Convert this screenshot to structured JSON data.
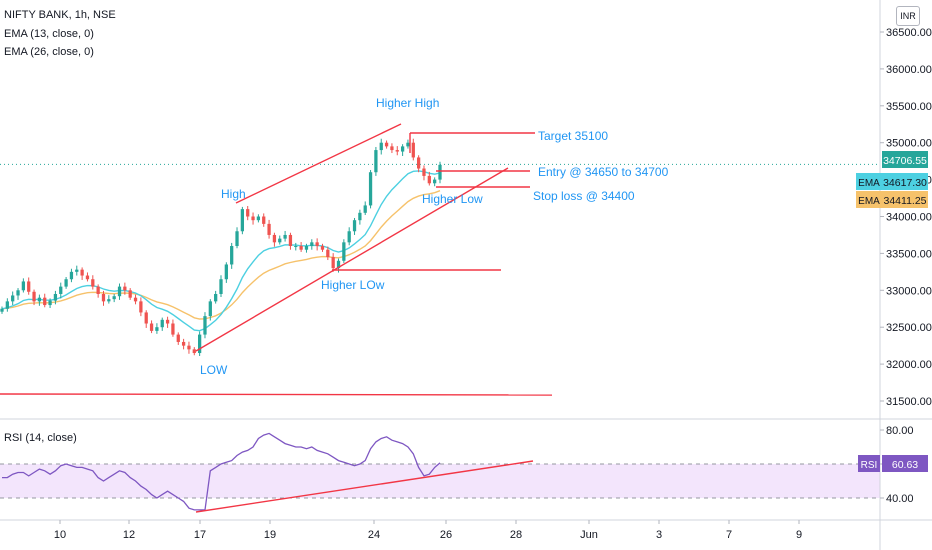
{
  "legend": {
    "symbol": "NIFTY BANK, 1h, NSE",
    "ema1": "EMA (13, close, 0)",
    "ema2": "EMA (26, close, 0)"
  },
  "rsi_legend": "RSI (14, close)",
  "currency": "INR",
  "colors": {
    "up": "#26a69a",
    "down": "#ef5350",
    "ema_fast": "#4dd0e1",
    "ema_slow": "#f6c26b",
    "rsi_line": "#7e57c2",
    "drawing": "#f23645",
    "annotation": "#2196f3",
    "rsi_band": "#f3e5fc"
  },
  "chart_data": [
    {
      "type": "candlestick",
      "title": "NIFTY BANK, 1h, NSE",
      "ylim": [
        31300,
        36800
      ],
      "y_ticks": [
        "36500.00",
        "36000.00",
        "35500.00",
        "35000.00",
        "34500.00",
        "34000.00",
        "33500.00",
        "33000.00",
        "32500.00",
        "32000.00",
        "31500.00"
      ],
      "x_ticks": [
        "10",
        "12",
        "17",
        "19",
        "24",
        "26",
        "28",
        "Jun",
        "3",
        "7",
        "9"
      ],
      "closes": [
        32750,
        32850,
        32930,
        33000,
        33120,
        32980,
        32850,
        32900,
        32800,
        32860,
        32950,
        33050,
        33150,
        33250,
        33280,
        33200,
        33150,
        33050,
        32950,
        32850,
        32880,
        32920,
        33050,
        33000,
        32900,
        32850,
        32700,
        32550,
        32450,
        32500,
        32600,
        32550,
        32400,
        32300,
        32250,
        32200,
        32150,
        32400,
        32650,
        32850,
        32950,
        33150,
        33350,
        33600,
        33800,
        34100,
        34000,
        33950,
        34000,
        33900,
        33750,
        33650,
        33700,
        33750,
        33600,
        33600,
        33550,
        33600,
        33650,
        33600,
        33550,
        33450,
        33300,
        33400,
        33650,
        33800,
        33950,
        34050,
        34150,
        34600,
        34900,
        35000,
        34950,
        34900,
        34880,
        34950,
        35000,
        34800,
        34650,
        34550,
        34450,
        34500,
        34700
      ],
      "annotations": [
        {
          "text": "Higher High",
          "price": 35400
        },
        {
          "text": "Target 35100",
          "price": 35100
        },
        {
          "text": "Entry @ 34650 to 34700",
          "price": 34650
        },
        {
          "text": "Stop loss @ 34400",
          "price": 34400
        },
        {
          "text": "Higher Low",
          "price": 34350
        },
        {
          "text": "High",
          "price": 34250
        },
        {
          "text": "Higher LOw",
          "price": 33150
        },
        {
          "text": "LOW",
          "price": 31900
        }
      ],
      "price_labels": [
        {
          "label": "",
          "value": "34706.55",
          "color": "#26a69a"
        },
        {
          "label": "EMA",
          "value": "34617.30",
          "color": "#4dd0e1"
        },
        {
          "label": "EMA",
          "value": "34411.25",
          "color": "#f6c26b"
        }
      ]
    },
    {
      "type": "line",
      "title": "RSI (14, close)",
      "ylim": [
        28,
        85
      ],
      "y_ticks": [
        "80.00",
        "60.00",
        "40.00"
      ],
      "band": [
        40,
        60
      ],
      "values": [
        52,
        52,
        54,
        55,
        55,
        53,
        55,
        57,
        56,
        54,
        56,
        59,
        60,
        59,
        58,
        58,
        57,
        56,
        52,
        50,
        52,
        54,
        56,
        55,
        52,
        50,
        47,
        45,
        42,
        40,
        42,
        44,
        42,
        40,
        38,
        34,
        33,
        33,
        33,
        56,
        58,
        60,
        61,
        62,
        65,
        67,
        68,
        70,
        75,
        77,
        78,
        76,
        74,
        72,
        71,
        70,
        70,
        69,
        70,
        68,
        67,
        66,
        64,
        62,
        61,
        60,
        59,
        60,
        62,
        69,
        73,
        75,
        76,
        74,
        73,
        72,
        70,
        66,
        58,
        53,
        54,
        58,
        60.63
      ],
      "current": "60.63"
    }
  ]
}
